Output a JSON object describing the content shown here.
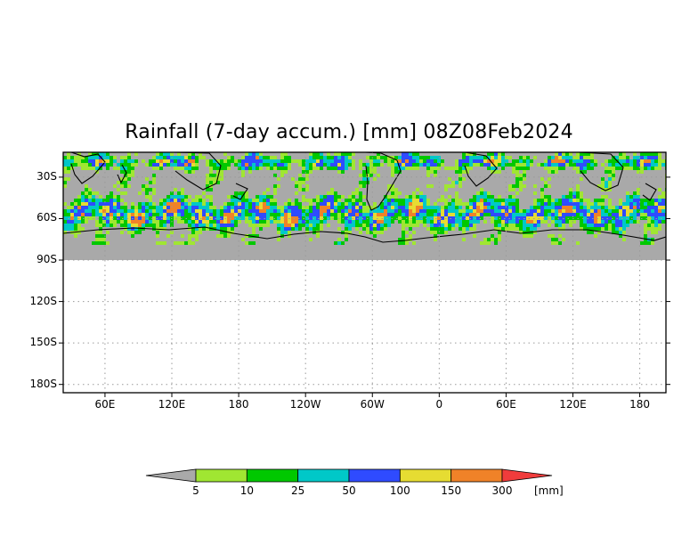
{
  "title": "Rainfall (7-day accum.) [mm] 08Z08Feb2024",
  "y_axis": {
    "ticks": [
      {
        "lat": 30,
        "label": "30S"
      },
      {
        "lat": 60,
        "label": "60S"
      },
      {
        "lat": 90,
        "label": "90S"
      },
      {
        "lat": 120,
        "label": "120S"
      },
      {
        "lat": 150,
        "label": "150S"
      },
      {
        "lat": 180,
        "label": "180S"
      }
    ]
  },
  "x_axis": {
    "ticks": [
      {
        "lon": 60,
        "label": "60E"
      },
      {
        "lon": 120,
        "label": "120E"
      },
      {
        "lon": 180,
        "label": "180"
      },
      {
        "lon": 240,
        "label": "120W"
      },
      {
        "lon": 300,
        "label": "60W"
      },
      {
        "lon": 360,
        "label": "0"
      },
      {
        "lon": 420,
        "label": "60E"
      },
      {
        "lon": 480,
        "label": "120E"
      },
      {
        "lon": 540,
        "label": "180"
      }
    ]
  },
  "colorbar": {
    "unit": "[mm]",
    "levels": [
      "5",
      "10",
      "25",
      "50",
      "100",
      "150",
      "300"
    ],
    "colors": [
      "#a9a9a9",
      "#a0e632",
      "#00c800",
      "#00c8c8",
      "#2f4bff",
      "#e6dc32",
      "#f08228",
      "#f03c3c"
    ]
  },
  "colors": {
    "no_rain": "#a9a9a9",
    "grid": "#9a9a9a",
    "coast": "#000000",
    "frame": "#000000"
  }
}
